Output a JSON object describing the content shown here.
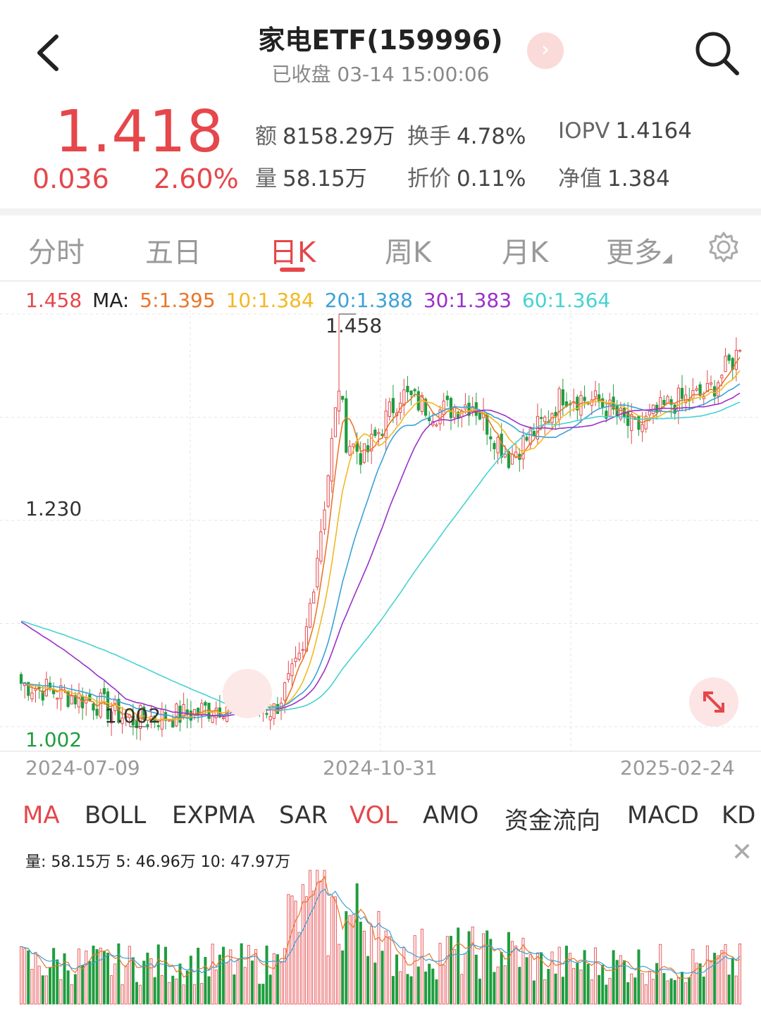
{
  "header": {
    "title": "家电ETF(159996)",
    "subtitle": "已收盘 03-14 15:00:06"
  },
  "quote": {
    "price": "1.418",
    "change": "0.036",
    "change_pct": "2.60%",
    "stats": [
      {
        "k": "额",
        "v": "8158.29万"
      },
      {
        "k": "换手",
        "v": "4.78%"
      },
      {
        "k": "IOPV",
        "v": "1.4164"
      },
      {
        "k": "量",
        "v": "58.15万"
      },
      {
        "k": "折价",
        "v": "0.11%"
      },
      {
        "k": "净值",
        "v": "1.384"
      }
    ]
  },
  "tabs": [
    "分时",
    "五日",
    "日K",
    "周K",
    "月K",
    "更多"
  ],
  "active_tab": "日K",
  "ma_legend": {
    "high": "1.458",
    "label": "MA:",
    "items": [
      {
        "text": "5:1.395",
        "color": "#e8762b"
      },
      {
        "text": "10:1.384",
        "color": "#f2b824"
      },
      {
        "text": "20:1.388",
        "color": "#3aa1d8"
      },
      {
        "text": "30:1.383",
        "color": "#9b30c9"
      },
      {
        "text": "60:1.364",
        "color": "#46d2d2"
      }
    ]
  },
  "chart_labels": {
    "max_label": "1.458",
    "mid_label": "1.230",
    "min_label": "1.002",
    "min_point_label": "1.002"
  },
  "dates": [
    "2024-07-09",
    "2024-10-31",
    "2025-02-24"
  ],
  "indicators": [
    "MA",
    "BOLL",
    "EXPMA",
    "SAR",
    "VOL",
    "AMO",
    "资金流向",
    "MACD",
    "KD"
  ],
  "active_indicators": [
    "MA",
    "VOL"
  ],
  "volume_legend": "量: 58.15万  5: 46.96万  10: 47.97万",
  "colors": {
    "up": "#e5474b",
    "down": "#1f9d3e"
  },
  "chart_data": {
    "type": "candlestick",
    "ylim": [
      1.002,
      1.458
    ],
    "y_ticks": [
      1.002,
      1.23,
      1.458
    ],
    "x_ticks": [
      "2024-07-09",
      "2024-10-31",
      "2025-02-24"
    ],
    "anchors": [
      {
        "i": 0,
        "c": 1.05
      },
      {
        "i": 20,
        "c": 1.03
      },
      {
        "i": 30,
        "c": 1.01
      },
      {
        "i": 45,
        "c": 1.015
      },
      {
        "i": 55,
        "c": 1.025
      },
      {
        "i": 62,
        "c": 1.03
      },
      {
        "i": 70,
        "c": 1.02
      },
      {
        "i": 78,
        "c": 1.08
      },
      {
        "i": 84,
        "c": 1.25
      },
      {
        "i": 88,
        "c": 1.38
      },
      {
        "i": 90,
        "c": 1.32
      },
      {
        "i": 95,
        "c": 1.3
      },
      {
        "i": 105,
        "c": 1.37
      },
      {
        "i": 115,
        "c": 1.35
      },
      {
        "i": 125,
        "c": 1.36
      },
      {
        "i": 135,
        "c": 1.3
      },
      {
        "i": 145,
        "c": 1.34
      },
      {
        "i": 150,
        "c": 1.37
      },
      {
        "i": 160,
        "c": 1.36
      },
      {
        "i": 170,
        "c": 1.33
      },
      {
        "i": 180,
        "c": 1.36
      },
      {
        "i": 190,
        "c": 1.37
      },
      {
        "i": 199,
        "c": 1.418
      }
    ],
    "series": [
      {
        "name": "MA5",
        "value": 1.395
      },
      {
        "name": "MA10",
        "value": 1.384
      },
      {
        "name": "MA20",
        "value": 1.388
      },
      {
        "name": "MA30",
        "value": 1.383
      },
      {
        "name": "MA60",
        "value": 1.364
      }
    ],
    "max": 1.458,
    "min": 1.002,
    "volume": {
      "latest": "58.15万",
      "ma5": "46.96万",
      "ma10": "47.97万"
    }
  }
}
